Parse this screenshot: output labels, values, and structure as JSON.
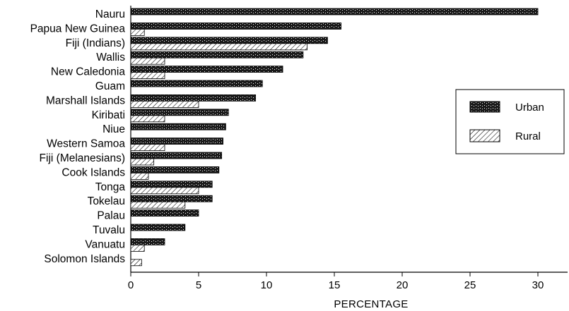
{
  "chart_data": {
    "type": "bar",
    "orientation": "horizontal",
    "categories": [
      "Nauru",
      "Papua New Guinea",
      "Fiji (Indians)",
      "Wallis",
      "New Caledonia",
      "Guam",
      "Marshall Islands",
      "Kiribati",
      "Niue",
      "Western Samoa",
      "Fiji (Melanesians)",
      "Cook Islands",
      "Tonga",
      "Tokelau",
      "Palau",
      "Tuvalu",
      "Vanuatu",
      "Solomon Islands"
    ],
    "series": [
      {
        "name": "Urban",
        "pattern": "dark-dotted",
        "values": [
          30.0,
          15.5,
          14.5,
          12.7,
          11.2,
          9.7,
          9.2,
          7.2,
          7.0,
          6.8,
          6.7,
          6.5,
          6.0,
          6.0,
          5.0,
          4.0,
          2.5,
          null
        ]
      },
      {
        "name": "Rural",
        "pattern": "diagonal-hatch",
        "values": [
          null,
          1.0,
          13.0,
          2.5,
          2.5,
          null,
          5.0,
          2.5,
          null,
          2.5,
          1.7,
          1.3,
          5.0,
          4.0,
          null,
          null,
          1.0,
          0.8
        ]
      }
    ],
    "xlabel": "PERCENTAGE",
    "ylabel": "",
    "xlim": [
      0,
      32
    ],
    "xticks": [
      "0",
      "5",
      "10",
      "15",
      "20",
      "25",
      "30"
    ],
    "legend": {
      "position": "right",
      "entries": [
        "Urban",
        "Rural"
      ]
    },
    "grid": false
  },
  "colors": {
    "bar_dark": "#1a1a1a",
    "bar_dot": "#ffffff",
    "hatch": "#000000",
    "background": "#ffffff",
    "axis": "#000000"
  }
}
